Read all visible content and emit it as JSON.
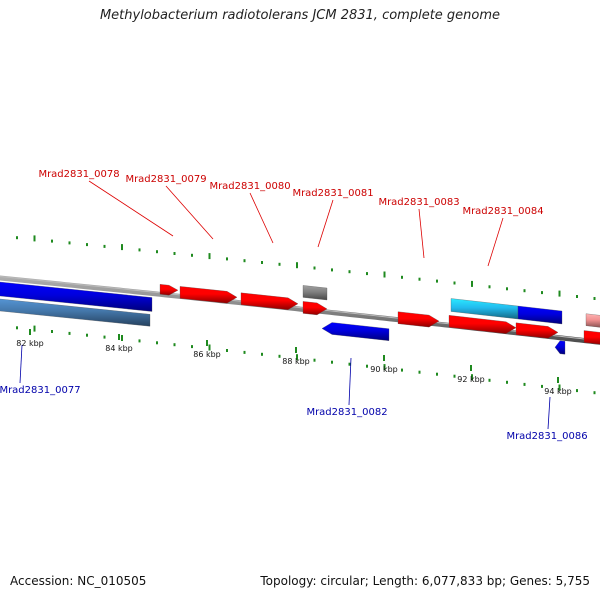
{
  "title": "Methylobacterium radiotolerans JCM 2831, complete genome",
  "footer": {
    "accession": "Accession: NC_010505",
    "summary": "Topology: circular; Length: 6,077,833 bp; Genes: 5,755"
  },
  "colors": {
    "backbone": "#8a8a8a",
    "tick": "#1f8a1f",
    "forward_label": "#cc0000",
    "reverse_label": "#0000aa",
    "forward_gene": "#ff0000",
    "reverse_gene": "#0000dd",
    "rna_gene": "#808080",
    "highlight_gene": "#22bbee",
    "steel_gene": "#4477aa"
  },
  "ticks": [
    {
      "label": "82 kbp"
    },
    {
      "label": "84 kbp"
    },
    {
      "label": "86 kbp"
    },
    {
      "label": "88 kbp"
    },
    {
      "label": "90 kbp"
    },
    {
      "label": "92 kbp"
    },
    {
      "label": "94 kbp"
    }
  ],
  "forward_labels": [
    "Mrad2831_0078",
    "Mrad2831_0079",
    "Mrad2831_0080",
    "Mrad2831_0081",
    "Mrad2831_0083",
    "Mrad2831_0084"
  ],
  "reverse_labels": [
    "Mrad2831_0077",
    "Mrad2831_0082",
    "Mrad2831_0086"
  ]
}
